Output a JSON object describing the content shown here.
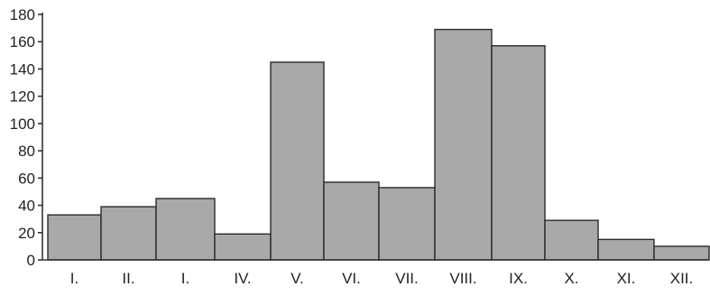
{
  "chart_data": {
    "type": "bar",
    "categories": [
      "I.",
      "II.",
      "I.",
      "IV.",
      "V.",
      "VI.",
      "VII.",
      "VIII.",
      "IX.",
      "X.",
      "XI.",
      "XII."
    ],
    "values": [
      33,
      39,
      45,
      19,
      145,
      57,
      53,
      169,
      157,
      29,
      15,
      10
    ],
    "title": "",
    "xlabel": "",
    "ylabel": "",
    "ylim": [
      0,
      180
    ],
    "yticks": [
      0,
      20,
      40,
      60,
      80,
      100,
      120,
      140,
      160,
      180
    ],
    "grid": false,
    "colors": {
      "bar": "#a9a9a9",
      "bar_edge": "#2a2a2a",
      "axis": "#333333"
    }
  }
}
